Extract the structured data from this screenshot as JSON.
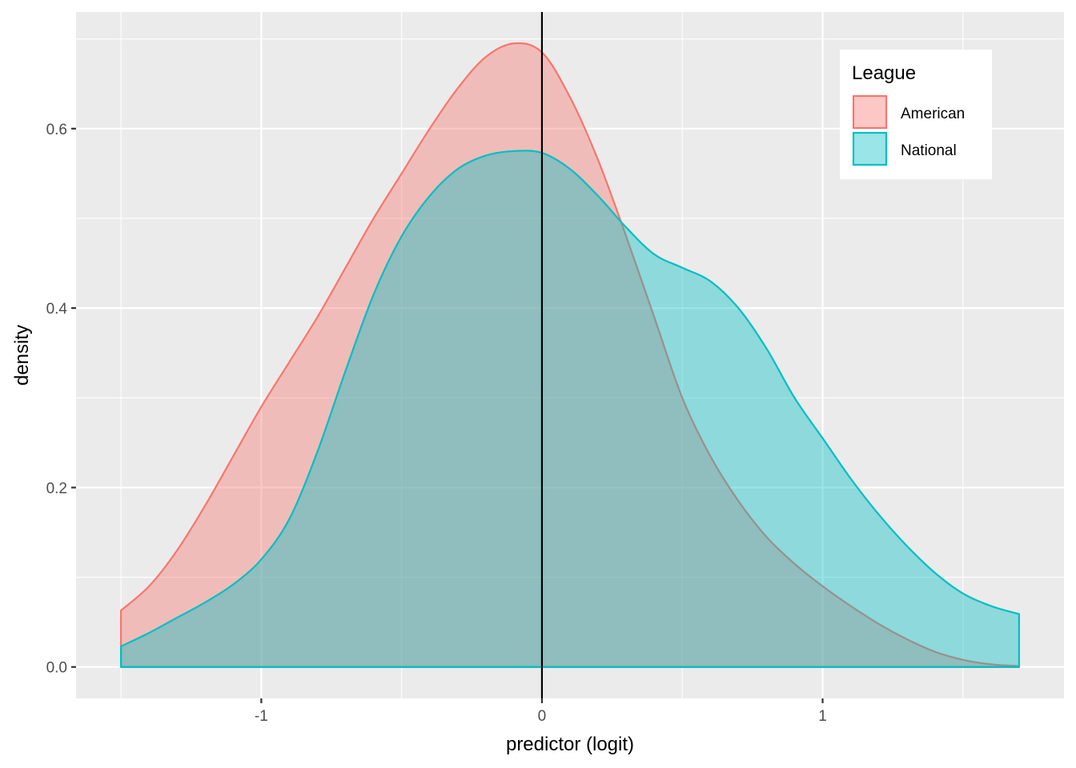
{
  "chart_data": {
    "type": "area",
    "title": "",
    "xlabel": "predictor (logit)",
    "ylabel": "density",
    "xlim": [
      -1.66,
      1.86
    ],
    "ylim": [
      -0.035,
      0.73
    ],
    "x_ticks": [
      -1,
      0,
      1
    ],
    "x_tick_labels": [
      "-1",
      "0",
      "1"
    ],
    "y_ticks": [
      0.0,
      0.2,
      0.4,
      0.6
    ],
    "y_tick_labels": [
      "0.0",
      "0.2",
      "0.4",
      "0.6"
    ],
    "x_minor": [
      -1.5,
      -0.5,
      0.5,
      1.5
    ],
    "y_minor": [
      0.1,
      0.3,
      0.5,
      0.7
    ],
    "grid": true,
    "vline_x": 0,
    "legend": {
      "title": "League",
      "position": "top-right"
    },
    "series": [
      {
        "name": "American",
        "color": "#F8766D",
        "fill_opacity": 0.4,
        "x": [
          -1.5,
          -1.4,
          -1.3,
          -1.2,
          -1.1,
          -1.0,
          -0.9,
          -0.8,
          -0.7,
          -0.6,
          -0.5,
          -0.4,
          -0.3,
          -0.2,
          -0.1,
          0.0,
          0.1,
          0.2,
          0.3,
          0.4,
          0.5,
          0.6,
          0.7,
          0.8,
          0.9,
          1.0,
          1.1,
          1.2,
          1.3,
          1.4,
          1.5,
          1.6,
          1.7
        ],
        "values": [
          0.063,
          0.09,
          0.13,
          0.18,
          0.235,
          0.29,
          0.34,
          0.39,
          0.445,
          0.5,
          0.55,
          0.6,
          0.645,
          0.68,
          0.695,
          0.685,
          0.635,
          0.565,
          0.48,
          0.39,
          0.3,
          0.235,
          0.185,
          0.145,
          0.115,
          0.09,
          0.068,
          0.048,
          0.031,
          0.017,
          0.008,
          0.003,
          0.001
        ]
      },
      {
        "name": "National",
        "color": "#00BFC4",
        "fill_opacity": 0.4,
        "x": [
          -1.5,
          -1.4,
          -1.3,
          -1.2,
          -1.1,
          -1.0,
          -0.9,
          -0.8,
          -0.7,
          -0.6,
          -0.5,
          -0.4,
          -0.3,
          -0.2,
          -0.1,
          0.0,
          0.1,
          0.2,
          0.3,
          0.4,
          0.5,
          0.6,
          0.7,
          0.8,
          0.9,
          1.0,
          1.1,
          1.2,
          1.3,
          1.4,
          1.5,
          1.6,
          1.7
        ],
        "values": [
          0.023,
          0.038,
          0.055,
          0.072,
          0.092,
          0.12,
          0.165,
          0.24,
          0.33,
          0.415,
          0.48,
          0.525,
          0.555,
          0.57,
          0.575,
          0.573,
          0.555,
          0.525,
          0.49,
          0.46,
          0.445,
          0.43,
          0.4,
          0.355,
          0.3,
          0.255,
          0.21,
          0.17,
          0.135,
          0.105,
          0.082,
          0.068,
          0.059
        ]
      }
    ]
  }
}
